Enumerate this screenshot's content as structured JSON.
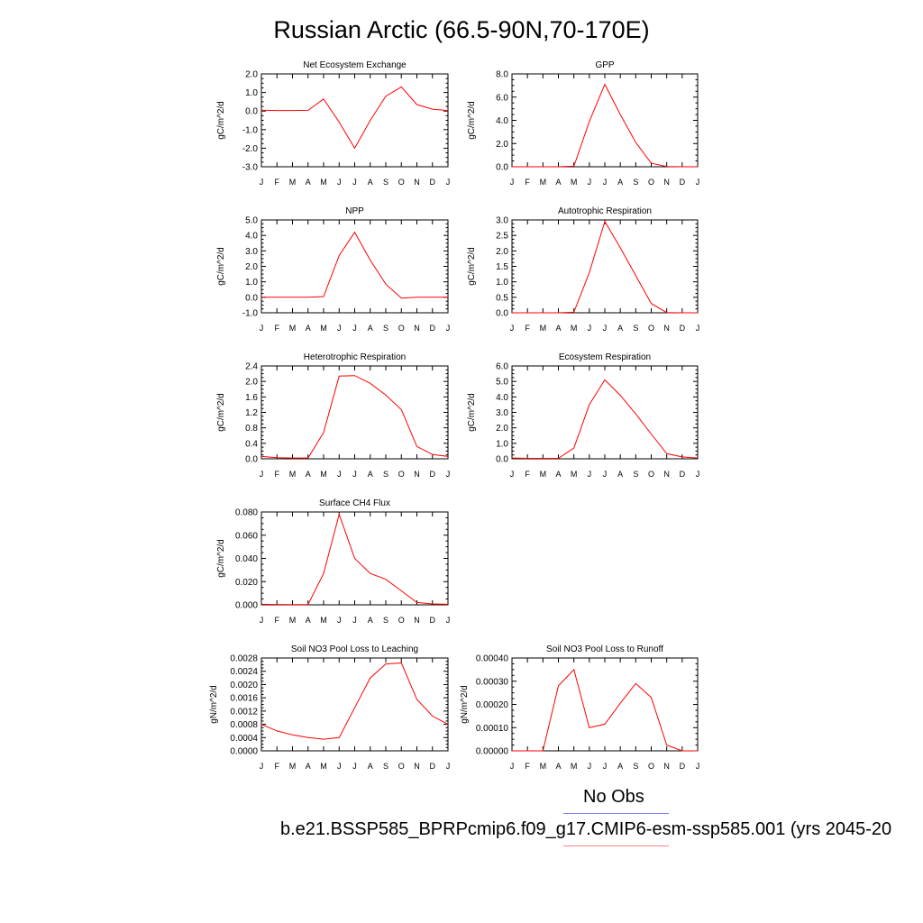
{
  "page": {
    "title": "Russian Arctic (66.5-90N,70-170E)"
  },
  "legend": {
    "obs_label": "No Obs",
    "obs_color": "#8080ff",
    "model_label": "b.e21.BSSP585_BPRPcmip6.f09_g17.CMIP6-esm-ssp585.001 (yrs 2045-20",
    "model_color": "#ff8080"
  },
  "style": {
    "line_color": "#ff0000"
  },
  "months": [
    "J",
    "F",
    "M",
    "A",
    "M",
    "J",
    "J",
    "A",
    "S",
    "O",
    "N",
    "D",
    "J"
  ],
  "chart_data": [
    {
      "type": "line",
      "title": "Net Ecosystem Exchange",
      "ylabel": "gC/m^2/d",
      "ylim": [
        -3.0,
        2.0
      ],
      "yticks": [
        -3.0,
        -2.0,
        -1.0,
        0.0,
        1.0,
        2.0
      ],
      "ytick_labels": [
        "-3.0",
        "-2.0",
        "-1.0",
        "0.0",
        "1.0",
        "2.0"
      ],
      "categories": [
        "J",
        "F",
        "M",
        "A",
        "M",
        "J",
        "J",
        "A",
        "S",
        "O",
        "N",
        "D",
        "J"
      ],
      "values": [
        0.05,
        0.03,
        0.03,
        0.04,
        0.65,
        -0.6,
        -2.0,
        -0.5,
        0.8,
        1.3,
        0.35,
        0.1,
        0.03
      ]
    },
    {
      "type": "line",
      "title": "GPP",
      "ylabel": "gC/m^2/d",
      "ylim": [
        0.0,
        8.0
      ],
      "yticks": [
        0.0,
        2.0,
        4.0,
        6.0,
        8.0
      ],
      "ytick_labels": [
        "0.0",
        "2.0",
        "4.0",
        "6.0",
        "8.0"
      ],
      "categories": [
        "J",
        "F",
        "M",
        "A",
        "M",
        "J",
        "J",
        "A",
        "S",
        "O",
        "N",
        "D",
        "J"
      ],
      "values": [
        0.0,
        0.0,
        0.0,
        0.0,
        0.05,
        3.9,
        7.1,
        4.5,
        2.1,
        0.3,
        0.02,
        0.0,
        0.0
      ]
    },
    {
      "type": "line",
      "title": "NPP",
      "ylabel": "gC/m^2/d",
      "ylim": [
        -1.0,
        5.0
      ],
      "yticks": [
        -1.0,
        0.0,
        1.0,
        2.0,
        3.0,
        4.0,
        5.0
      ],
      "ytick_labels": [
        "-1.0",
        "0.0",
        "1.0",
        "2.0",
        "3.0",
        "4.0",
        "5.0"
      ],
      "categories": [
        "J",
        "F",
        "M",
        "A",
        "M",
        "J",
        "J",
        "A",
        "S",
        "O",
        "N",
        "D",
        "J"
      ],
      "values": [
        0.0,
        0.0,
        0.0,
        0.0,
        0.05,
        2.7,
        4.2,
        2.4,
        0.85,
        -0.05,
        0.0,
        0.0,
        0.0
      ]
    },
    {
      "type": "line",
      "title": "Autotrophic Respiration",
      "ylabel": "gC/m^2/d",
      "ylim": [
        0.0,
        3.0
      ],
      "yticks": [
        0.0,
        0.5,
        1.0,
        1.5,
        2.0,
        2.5,
        3.0
      ],
      "ytick_labels": [
        "0.0",
        "0.5",
        "1.0",
        "1.5",
        "2.0",
        "2.5",
        "3.0"
      ],
      "categories": [
        "J",
        "F",
        "M",
        "A",
        "M",
        "J",
        "J",
        "A",
        "S",
        "O",
        "N",
        "D",
        "J"
      ],
      "values": [
        0.0,
        0.0,
        0.0,
        0.0,
        0.02,
        1.3,
        2.95,
        2.1,
        1.2,
        0.3,
        0.01,
        0.0,
        0.0
      ]
    },
    {
      "type": "line",
      "title": "Heterotrophic Respiration",
      "ylabel": "gC/m^2/d",
      "ylim": [
        0.0,
        2.4
      ],
      "yticks": [
        0.0,
        0.4,
        0.8,
        1.2,
        1.6,
        2.0,
        2.4
      ],
      "ytick_labels": [
        "0.0",
        "0.4",
        "0.8",
        "1.2",
        "1.6",
        "2.0",
        "2.4"
      ],
      "categories": [
        "J",
        "F",
        "M",
        "A",
        "M",
        "J",
        "J",
        "A",
        "S",
        "O",
        "N",
        "D",
        "J"
      ],
      "values": [
        0.06,
        0.03,
        0.02,
        0.02,
        0.68,
        2.14,
        2.15,
        1.95,
        1.65,
        1.27,
        0.32,
        0.11,
        0.06
      ]
    },
    {
      "type": "line",
      "title": "Ecosystem Respiration",
      "ylabel": "gC/m^2/d",
      "ylim": [
        0.0,
        6.0
      ],
      "yticks": [
        0.0,
        1.0,
        2.0,
        3.0,
        4.0,
        5.0,
        6.0
      ],
      "ytick_labels": [
        "0.0",
        "1.0",
        "2.0",
        "3.0",
        "4.0",
        "5.0",
        "6.0"
      ],
      "categories": [
        "J",
        "F",
        "M",
        "A",
        "M",
        "J",
        "J",
        "A",
        "S",
        "O",
        "N",
        "D",
        "J"
      ],
      "values": [
        0.05,
        0.03,
        0.03,
        0.03,
        0.7,
        3.5,
        5.1,
        4.1,
        2.9,
        1.6,
        0.33,
        0.12,
        0.05
      ]
    },
    {
      "type": "line",
      "title": "Surface CH4 Flux",
      "ylabel": "gC/m^2/d",
      "ylim": [
        0.0,
        0.08
      ],
      "yticks": [
        0.0,
        0.02,
        0.04,
        0.06,
        0.08
      ],
      "ytick_labels": [
        "0.000",
        "0.020",
        "0.040",
        "0.060",
        "0.080"
      ],
      "categories": [
        "J",
        "F",
        "M",
        "A",
        "M",
        "J",
        "J",
        "A",
        "S",
        "O",
        "N",
        "D",
        "J"
      ],
      "values": [
        0.0005,
        0.0003,
        0.0002,
        0.0003,
        0.027,
        0.078,
        0.04,
        0.027,
        0.022,
        0.012,
        0.002,
        0.0008,
        0.0005
      ]
    },
    {
      "type": "line",
      "title": "Soil NO3 Pool Loss to Leaching",
      "ylabel": "gN/m^2/d",
      "ylim": [
        0.0,
        0.0028
      ],
      "yticks": [
        0.0,
        0.0004,
        0.0008,
        0.0012,
        0.0016,
        0.002,
        0.0024,
        0.0028
      ],
      "ytick_labels": [
        "0.0000",
        "0.0004",
        "0.0008",
        "0.0012",
        "0.0016",
        "0.0020",
        "0.0024",
        "0.0028"
      ],
      "categories": [
        "J",
        "F",
        "M",
        "A",
        "M",
        "J",
        "J",
        "A",
        "S",
        "O",
        "N",
        "D",
        "J"
      ],
      "values": [
        0.0008,
        0.0006,
        0.00048,
        0.0004,
        0.00035,
        0.0004,
        0.0013,
        0.0022,
        0.00262,
        0.00265,
        0.00155,
        0.00105,
        0.0008
      ]
    },
    {
      "type": "line",
      "title": "Soil NO3 Pool Loss to Runoff",
      "ylabel": "gN/m^2/d",
      "ylim": [
        0.0,
        0.0004
      ],
      "yticks": [
        0.0,
        0.0001,
        0.0002,
        0.0003,
        0.0004
      ],
      "ytick_labels": [
        "0.00000",
        "0.00010",
        "0.00020",
        "0.00030",
        "0.00040"
      ],
      "categories": [
        "J",
        "F",
        "M",
        "A",
        "M",
        "J",
        "J",
        "A",
        "S",
        "O",
        "N",
        "D",
        "J"
      ],
      "values": [
        0.0,
        0.0,
        0.0,
        0.00028,
        0.00035,
        0.0001,
        0.000115,
        0.000205,
        0.00029,
        0.00023,
        2.5e-05,
        0.0,
        0.0
      ]
    }
  ]
}
